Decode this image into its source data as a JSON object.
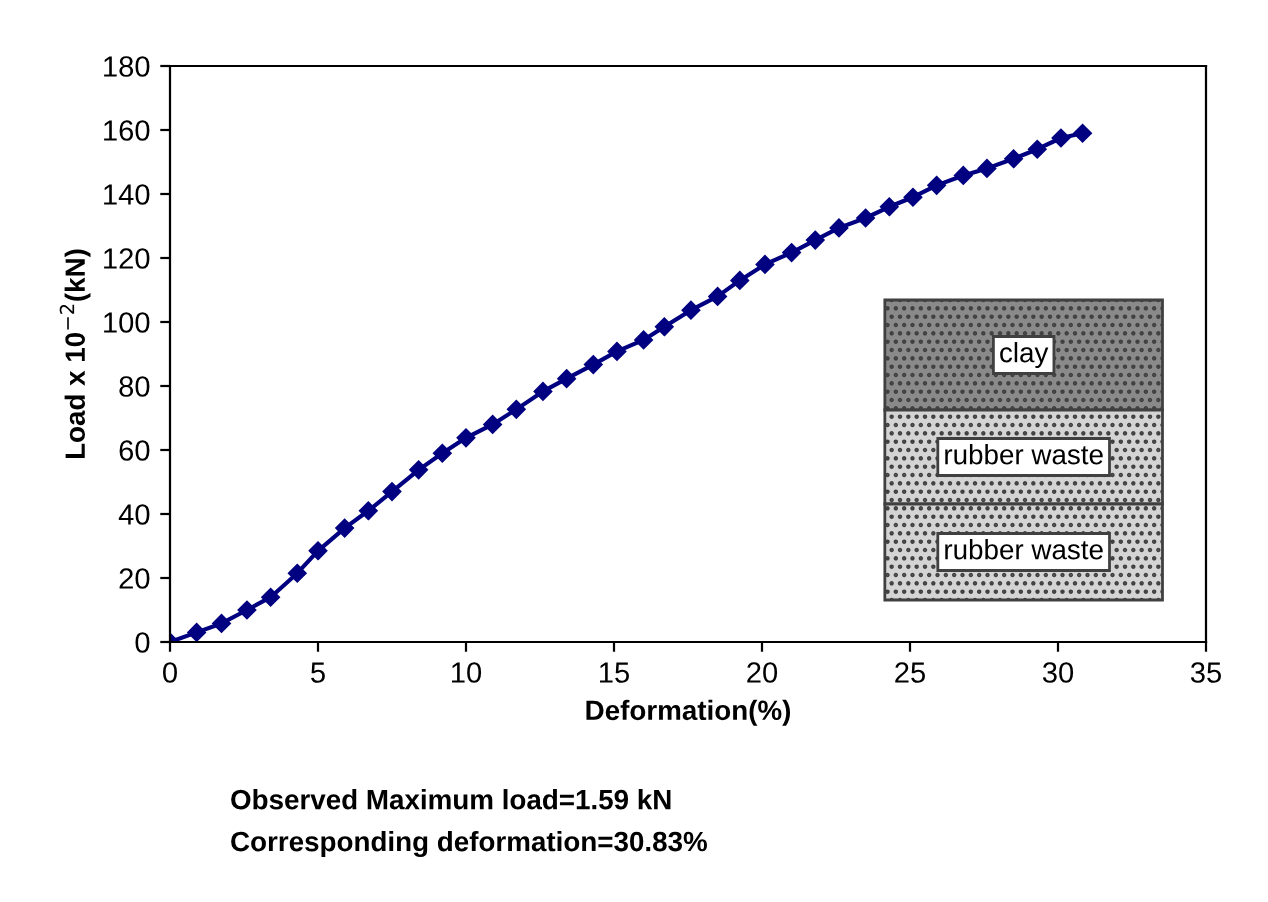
{
  "chart_data": {
    "type": "line",
    "xlabel": "Deformation(%)",
    "ylabel": "Load x 10$^{−2}$(kN)",
    "x": [
      0,
      0.9,
      1.74,
      2.6,
      3.4,
      4.3,
      5.0,
      5.9,
      6.7,
      7.5,
      8.4,
      9.2,
      10.0,
      10.9,
      11.7,
      12.6,
      13.4,
      14.3,
      15.1,
      16.0,
      16.7,
      17.6,
      18.5,
      19.25,
      20.1,
      21.0,
      21.8,
      22.6,
      23.5,
      24.3,
      25.1,
      25.9,
      26.8,
      27.6,
      28.5,
      29.3,
      30.1,
      30.83
    ],
    "series": [
      {
        "color": "#000080",
        "values": [
          0,
          3,
          5.8,
          10,
          14,
          21.5,
          28.5,
          35.6,
          41,
          47,
          53.8,
          59,
          63.8,
          68,
          72.7,
          78.3,
          82.3,
          86.7,
          90.8,
          94.4,
          98.5,
          103.7,
          108,
          113,
          118,
          121.7,
          125.6,
          129.4,
          132.5,
          136,
          139,
          142.7,
          145.8,
          148,
          151,
          154,
          157.5,
          159
        ]
      }
    ],
    "xlim": [
      0,
      35
    ],
    "ylim": [
      0,
      180
    ],
    "xticks": [
      0,
      5,
      10,
      15,
      20,
      25,
      30,
      35
    ],
    "yticks": [
      0,
      20,
      40,
      60,
      80,
      100,
      120,
      140,
      160,
      180
    ],
    "grid": false,
    "legend": false,
    "marker": "diamond",
    "line_style": "solid",
    "annotations": [
      "clay",
      "rubber waste",
      "rubber waste",
      "Observed Maximum load=1.59 kN",
      "Corresponding deformation=30.83%"
    ]
  }
}
